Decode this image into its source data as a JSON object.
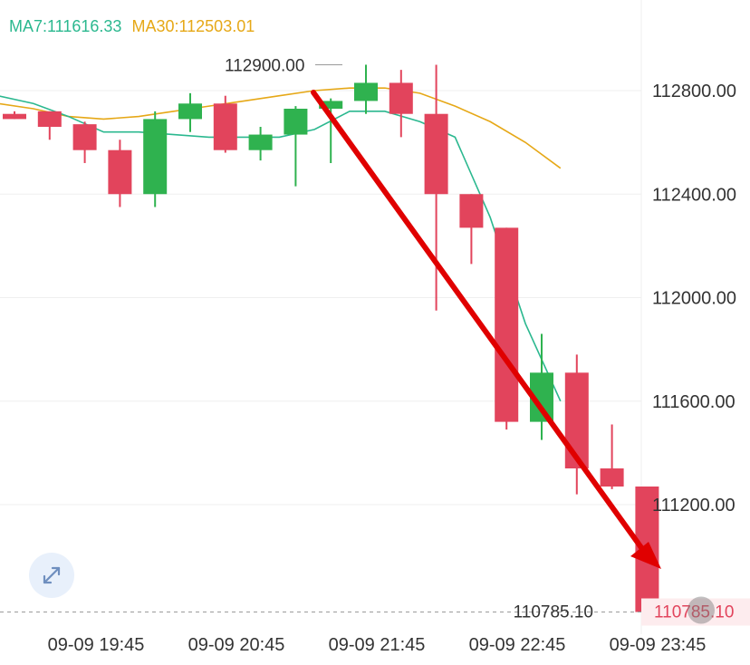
{
  "legend": {
    "ma7_label": "MA7:111616.33",
    "ma30_label": "MA30:112503.01",
    "ma7_color": "#2bb88f",
    "ma30_color": "#e6a817"
  },
  "colors": {
    "up": "#2fb24f",
    "down": "#e2445c",
    "arrow": "#e00000",
    "grid": "#efefef",
    "price_tag": "#e2445c"
  },
  "icons": {
    "expand": "expand-arrows-icon"
  },
  "chart_data": {
    "type": "candlestick",
    "ylim": [
      110700,
      113000
    ],
    "y_ticks": [
      112800,
      112400,
      112000,
      111600,
      111200
    ],
    "y_tick_labels": [
      "112800.00",
      "112400.00",
      "112000.00",
      "111600.00",
      "111200.00"
    ],
    "x_tick_labels": [
      "09-09 19:45",
      "09-09 20:45",
      "09-09 21:45",
      "09-09 22:45",
      "09-09 23:45"
    ],
    "candles": [
      {
        "o": 112710,
        "h": 112720,
        "l": 112690,
        "c": 112690
      },
      {
        "o": 112720,
        "h": 112720,
        "l": 112610,
        "c": 112660
      },
      {
        "o": 112670,
        "h": 112680,
        "l": 112520,
        "c": 112570
      },
      {
        "o": 112570,
        "h": 112610,
        "l": 112350,
        "c": 112400
      },
      {
        "o": 112400,
        "h": 112720,
        "l": 112350,
        "c": 112690
      },
      {
        "o": 112690,
        "h": 112790,
        "l": 112640,
        "c": 112750
      },
      {
        "o": 112750,
        "h": 112780,
        "l": 112560,
        "c": 112570
      },
      {
        "o": 112570,
        "h": 112660,
        "l": 112530,
        "c": 112630
      },
      {
        "o": 112630,
        "h": 112740,
        "l": 112430,
        "c": 112730
      },
      {
        "o": 112730,
        "h": 112770,
        "l": 112520,
        "c": 112760
      },
      {
        "o": 112760,
        "h": 112900,
        "l": 112710,
        "c": 112830
      },
      {
        "o": 112830,
        "h": 112880,
        "l": 112620,
        "c": 112710
      },
      {
        "o": 112710,
        "h": 112900,
        "l": 111950,
        "c": 112400
      },
      {
        "o": 112400,
        "h": 112400,
        "l": 112130,
        "c": 112270
      },
      {
        "o": 112270,
        "h": 112270,
        "l": 111490,
        "c": 111520
      },
      {
        "o": 111520,
        "h": 111860,
        "l": 111450,
        "c": 111710
      },
      {
        "o": 111710,
        "h": 111780,
        "l": 111240,
        "c": 111340
      },
      {
        "o": 111340,
        "h": 111510,
        "l": 111260,
        "c": 111270
      },
      {
        "o": 111270,
        "h": 111270,
        "l": 110785.1,
        "c": 110785.1
      }
    ],
    "ma7": [
      112780,
      112750,
      112700,
      112640,
      112640,
      112630,
      112620,
      112620,
      112620,
      112650,
      112720,
      112720,
      112680,
      112620,
      112310,
      111900,
      111600
    ],
    "ma30": [
      112750,
      112730,
      112700,
      112690,
      112700,
      112720,
      112740,
      112760,
      112780,
      112800,
      112810,
      112810,
      112790,
      112740,
      112680,
      112600,
      112500
    ],
    "high_marker": "112900.00",
    "last_price": "110785.10",
    "last_price_tag": "110785.10"
  }
}
